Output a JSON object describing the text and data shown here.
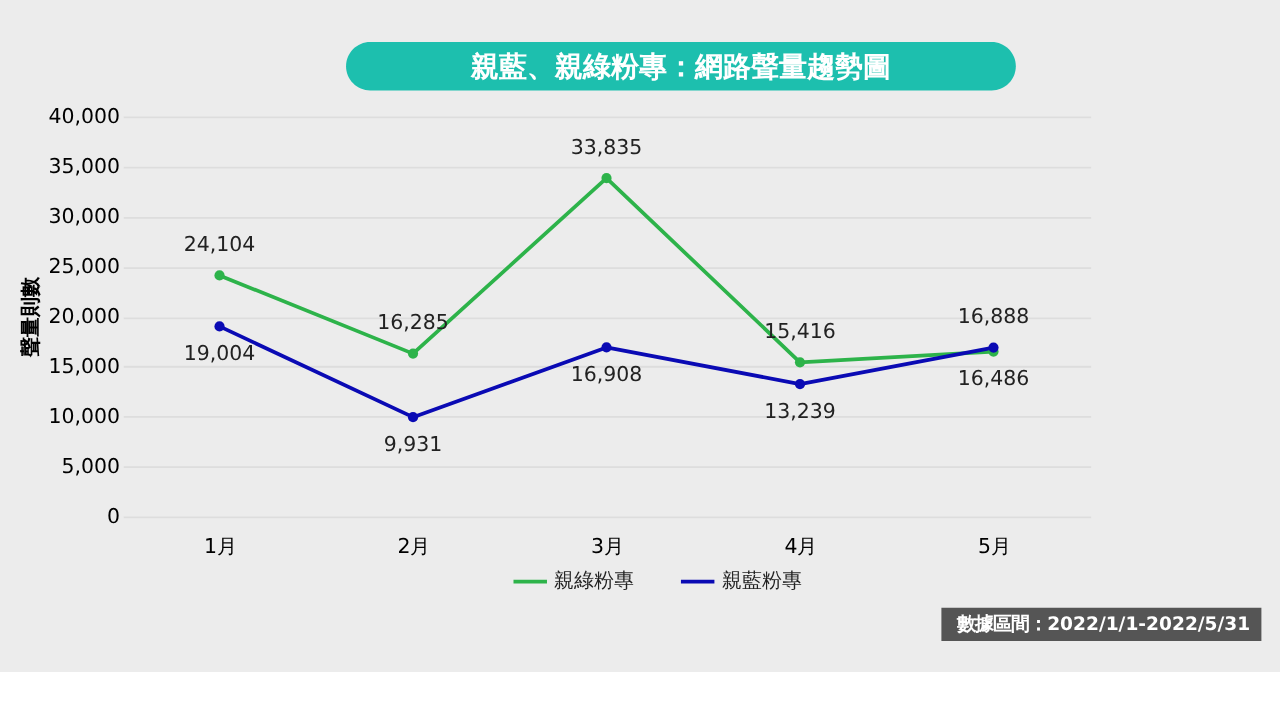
{
  "chart_data": {
    "type": "line",
    "title": "親藍、親綠粉專：網路聲量趨勢圖",
    "ylabel": "聲量則數",
    "categories": [
      "1月",
      "2月",
      "3月",
      "4月",
      "5月"
    ],
    "series": [
      {
        "name": "親綠粉專",
        "color": "#2db34a",
        "values": [
          24104,
          16285,
          33835,
          15416,
          16486
        ],
        "value_labels": [
          "24,104",
          "16,285",
          "33,835",
          "15,416",
          "16,486"
        ]
      },
      {
        "name": "親藍粉專",
        "color": "#0a0ab4",
        "values": [
          19004,
          9931,
          16908,
          13239,
          16888
        ],
        "value_labels": [
          "19,004",
          "9,931",
          "16,908",
          "13,239",
          "16,888"
        ]
      }
    ],
    "ylim": [
      0,
      40000
    ],
    "yticks": [
      0,
      {
        "value": 5000,
        "label": "5,000"
      },
      {
        "value": 10000,
        "label": "10,000"
      },
      {
        "value": 15000,
        "label": "15,000"
      },
      {
        "value": 20000,
        "label": "20,000"
      },
      {
        "value": 25000,
        "label": "25,000"
      },
      {
        "value": 30000,
        "label": "30,000"
      },
      {
        "value": 35000,
        "label": "35,000"
      },
      {
        "value": 40000,
        "label": "40,000"
      }
    ],
    "grid": "y",
    "legend": "bottom",
    "marker": "circle",
    "line_style": "solid",
    "annotations": [
      "數據區間：2022/1/1-2022/5/31"
    ]
  }
}
